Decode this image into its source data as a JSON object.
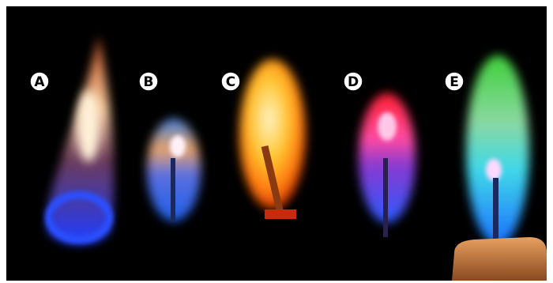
{
  "labels": [
    "A",
    "B",
    "C",
    "D",
    "E"
  ]
}
